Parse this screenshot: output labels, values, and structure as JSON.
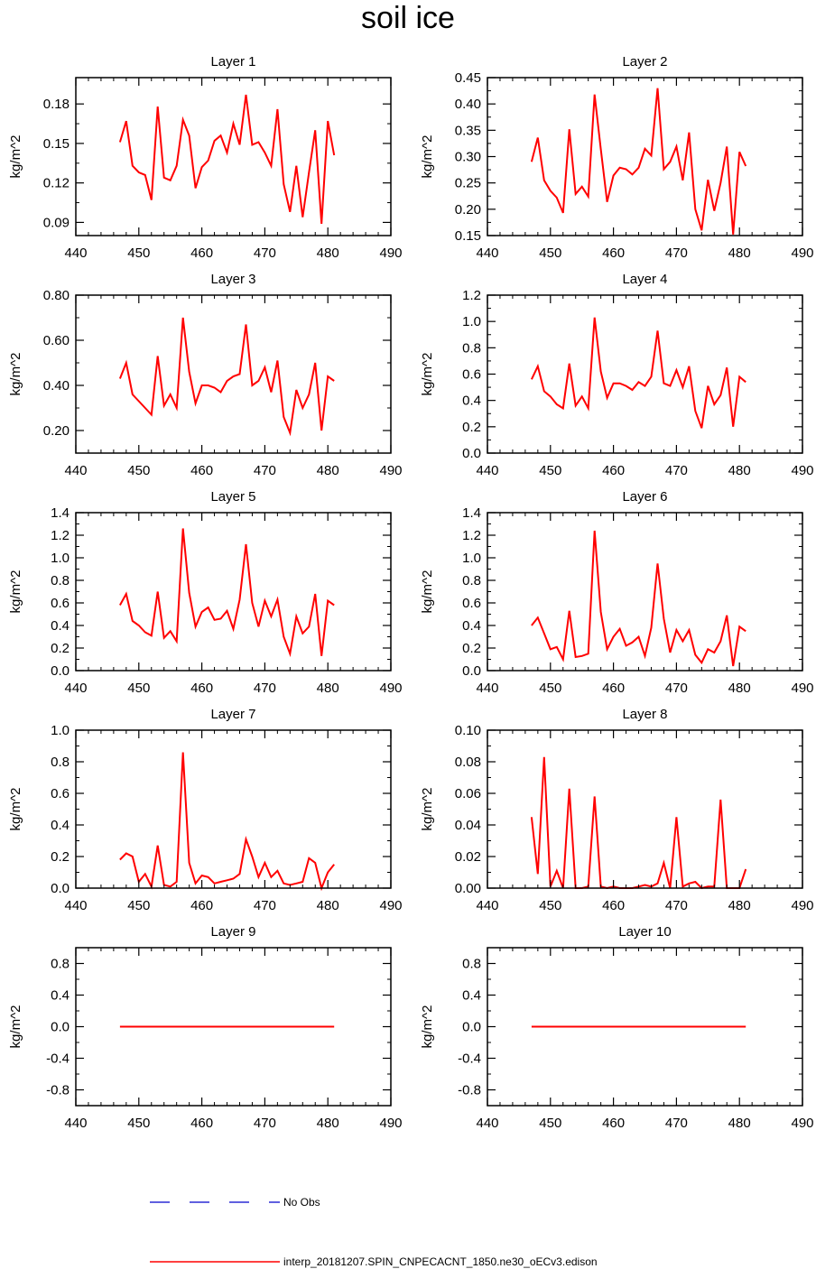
{
  "title": "soil ice",
  "chart_data": [
    {
      "type": "line",
      "title": "Layer 1",
      "ylabel": "kg/m^2",
      "xlim": [
        440,
        490
      ],
      "xticks": [
        440,
        450,
        460,
        470,
        480,
        490
      ],
      "ylim": [
        0.08,
        0.2
      ],
      "yticks": [
        0.09,
        0.12,
        0.15,
        0.18
      ],
      "ytick_labels": [
        "0.09",
        "0.12",
        "0.15",
        "0.18"
      ],
      "x": [
        447,
        448,
        449,
        450,
        451,
        452,
        453,
        454,
        455,
        456,
        457,
        458,
        459,
        460,
        461,
        462,
        463,
        464,
        465,
        466,
        467,
        468,
        469,
        470,
        471,
        472,
        473,
        474,
        475,
        476,
        477,
        478,
        479,
        480,
        481
      ],
      "series": [
        {
          "name": "interp_20181207.SPIN_CNPECACNT_1850.ne30_oECv3.edison",
          "values": [
            0.151,
            0.167,
            0.133,
            0.128,
            0.126,
            0.107,
            0.178,
            0.124,
            0.122,
            0.133,
            0.168,
            0.156,
            0.116,
            0.132,
            0.137,
            0.152,
            0.156,
            0.143,
            0.165,
            0.149,
            0.187,
            0.149,
            0.151,
            0.143,
            0.133,
            0.176,
            0.119,
            0.098,
            0.133,
            0.094,
            0.128,
            0.16,
            0.089,
            0.167,
            0.141
          ]
        }
      ]
    },
    {
      "type": "line",
      "title": "Layer 2",
      "ylabel": "kg/m^2",
      "xlim": [
        440,
        490
      ],
      "xticks": [
        440,
        450,
        460,
        470,
        480,
        490
      ],
      "ylim": [
        0.15,
        0.45
      ],
      "yticks": [
        0.15,
        0.2,
        0.25,
        0.3,
        0.35,
        0.4,
        0.45
      ],
      "ytick_labels": [
        "0.15",
        "0.20",
        "0.25",
        "0.30",
        "0.35",
        "0.40",
        "0.45"
      ],
      "x": [
        447,
        448,
        449,
        450,
        451,
        452,
        453,
        454,
        455,
        456,
        457,
        458,
        459,
        460,
        461,
        462,
        463,
        464,
        465,
        466,
        467,
        468,
        469,
        470,
        471,
        472,
        473,
        474,
        475,
        476,
        477,
        478,
        479,
        480,
        481
      ],
      "series": [
        {
          "name": "interp_20181207.SPIN_CNPECACNT_1850.ne30_oECv3.edison",
          "values": [
            0.29,
            0.336,
            0.255,
            0.235,
            0.222,
            0.193,
            0.352,
            0.229,
            0.243,
            0.224,
            0.418,
            0.314,
            0.214,
            0.264,
            0.279,
            0.276,
            0.266,
            0.279,
            0.315,
            0.302,
            0.43,
            0.276,
            0.29,
            0.319,
            0.255,
            0.346,
            0.2,
            0.16,
            0.256,
            0.197,
            0.25,
            0.319,
            0.152,
            0.309,
            0.282
          ]
        }
      ]
    },
    {
      "type": "line",
      "title": "Layer 3",
      "ylabel": "kg/m^2",
      "xlim": [
        440,
        490
      ],
      "xticks": [
        440,
        450,
        460,
        470,
        480,
        490
      ],
      "ylim": [
        0.1,
        0.8
      ],
      "yticks": [
        0.2,
        0.4,
        0.6,
        0.8
      ],
      "ytick_labels": [
        "0.20",
        "0.40",
        "0.60",
        "0.80"
      ],
      "x": [
        447,
        448,
        449,
        450,
        451,
        452,
        453,
        454,
        455,
        456,
        457,
        458,
        459,
        460,
        461,
        462,
        463,
        464,
        465,
        466,
        467,
        468,
        469,
        470,
        471,
        472,
        473,
        474,
        475,
        476,
        477,
        478,
        479,
        480,
        481
      ],
      "series": [
        {
          "name": "interp_20181207.SPIN_CNPECACNT_1850.ne30_oECv3.edison",
          "values": [
            0.43,
            0.5,
            0.36,
            0.33,
            0.3,
            0.27,
            0.53,
            0.31,
            0.36,
            0.3,
            0.7,
            0.46,
            0.32,
            0.4,
            0.4,
            0.39,
            0.37,
            0.42,
            0.44,
            0.45,
            0.67,
            0.4,
            0.42,
            0.48,
            0.37,
            0.51,
            0.26,
            0.19,
            0.38,
            0.3,
            0.36,
            0.5,
            0.2,
            0.44,
            0.42
          ]
        }
      ]
    },
    {
      "type": "line",
      "title": "Layer 4",
      "ylabel": "kg/m^2",
      "xlim": [
        440,
        490
      ],
      "xticks": [
        440,
        450,
        460,
        470,
        480,
        490
      ],
      "ylim": [
        0,
        1.2
      ],
      "yticks": [
        0,
        0.2,
        0.4,
        0.6,
        0.8,
        1.0,
        1.2
      ],
      "ytick_labels": [
        "0.0",
        "0.2",
        "0.4",
        "0.6",
        "0.8",
        "1.0",
        "1.2"
      ],
      "x": [
        447,
        448,
        449,
        450,
        451,
        452,
        453,
        454,
        455,
        456,
        457,
        458,
        459,
        460,
        461,
        462,
        463,
        464,
        465,
        466,
        467,
        468,
        469,
        470,
        471,
        472,
        473,
        474,
        475,
        476,
        477,
        478,
        479,
        480,
        481
      ],
      "series": [
        {
          "name": "interp_20181207.SPIN_CNPECACNT_1850.ne30_oECv3.edison",
          "values": [
            0.56,
            0.66,
            0.47,
            0.43,
            0.37,
            0.34,
            0.68,
            0.36,
            0.43,
            0.34,
            1.03,
            0.62,
            0.42,
            0.53,
            0.53,
            0.51,
            0.48,
            0.54,
            0.51,
            0.58,
            0.93,
            0.53,
            0.51,
            0.63,
            0.5,
            0.66,
            0.32,
            0.19,
            0.51,
            0.37,
            0.44,
            0.65,
            0.2,
            0.58,
            0.54
          ]
        }
      ]
    },
    {
      "type": "line",
      "title": "Layer 5",
      "ylabel": "kg/m^2",
      "xlim": [
        440,
        490
      ],
      "xticks": [
        440,
        450,
        460,
        470,
        480,
        490
      ],
      "ylim": [
        0,
        1.4
      ],
      "yticks": [
        0,
        0.2,
        0.4,
        0.6,
        0.8,
        1.0,
        1.2,
        1.4
      ],
      "ytick_labels": [
        "0.0",
        "0.2",
        "0.4",
        "0.6",
        "0.8",
        "1.0",
        "1.2",
        "1.4"
      ],
      "x": [
        447,
        448,
        449,
        450,
        451,
        452,
        453,
        454,
        455,
        456,
        457,
        458,
        459,
        460,
        461,
        462,
        463,
        464,
        465,
        466,
        467,
        468,
        469,
        470,
        471,
        472,
        473,
        474,
        475,
        476,
        477,
        478,
        479,
        480,
        481
      ],
      "series": [
        {
          "name": "interp_20181207.SPIN_CNPECACNT_1850.ne30_oECv3.edison",
          "values": [
            0.58,
            0.68,
            0.44,
            0.4,
            0.34,
            0.31,
            0.7,
            0.29,
            0.35,
            0.26,
            1.26,
            0.69,
            0.39,
            0.52,
            0.56,
            0.45,
            0.46,
            0.53,
            0.37,
            0.63,
            1.12,
            0.6,
            0.39,
            0.62,
            0.48,
            0.63,
            0.3,
            0.15,
            0.48,
            0.33,
            0.39,
            0.68,
            0.13,
            0.62,
            0.58
          ]
        }
      ]
    },
    {
      "type": "line",
      "title": "Layer 6",
      "ylabel": "kg/m^2",
      "xlim": [
        440,
        490
      ],
      "xticks": [
        440,
        450,
        460,
        470,
        480,
        490
      ],
      "ylim": [
        0,
        1.4
      ],
      "yticks": [
        0,
        0.2,
        0.4,
        0.6,
        0.8,
        1.0,
        1.2,
        1.4
      ],
      "ytick_labels": [
        "0.0",
        "0.2",
        "0.4",
        "0.6",
        "0.8",
        "1.0",
        "1.2",
        "1.4"
      ],
      "x": [
        447,
        448,
        449,
        450,
        451,
        452,
        453,
        454,
        455,
        456,
        457,
        458,
        459,
        460,
        461,
        462,
        463,
        464,
        465,
        466,
        467,
        468,
        469,
        470,
        471,
        472,
        473,
        474,
        475,
        476,
        477,
        478,
        479,
        480,
        481
      ],
      "series": [
        {
          "name": "interp_20181207.SPIN_CNPECACNT_1850.ne30_oECv3.edison",
          "values": [
            0.4,
            0.47,
            0.33,
            0.19,
            0.21,
            0.1,
            0.53,
            0.12,
            0.13,
            0.15,
            1.24,
            0.52,
            0.19,
            0.3,
            0.37,
            0.22,
            0.25,
            0.3,
            0.13,
            0.38,
            0.95,
            0.46,
            0.16,
            0.36,
            0.26,
            0.36,
            0.14,
            0.07,
            0.19,
            0.16,
            0.26,
            0.49,
            0.04,
            0.39,
            0.35
          ]
        }
      ]
    },
    {
      "type": "line",
      "title": "Layer 7",
      "ylabel": "kg/m^2",
      "xlim": [
        440,
        490
      ],
      "xticks": [
        440,
        450,
        460,
        470,
        480,
        490
      ],
      "ylim": [
        0,
        1.0
      ],
      "yticks": [
        0,
        0.2,
        0.4,
        0.6,
        0.8,
        1.0
      ],
      "ytick_labels": [
        "0.0",
        "0.2",
        "0.4",
        "0.6",
        "0.8",
        "1.0"
      ],
      "x": [
        447,
        448,
        449,
        450,
        451,
        452,
        453,
        454,
        455,
        456,
        457,
        458,
        459,
        460,
        461,
        462,
        463,
        464,
        465,
        466,
        467,
        468,
        469,
        470,
        471,
        472,
        473,
        474,
        475,
        476,
        477,
        478,
        479,
        480,
        481
      ],
      "series": [
        {
          "name": "interp_20181207.SPIN_CNPECACNT_1850.ne30_oECv3.edison",
          "values": [
            0.18,
            0.22,
            0.2,
            0.04,
            0.09,
            0.01,
            0.27,
            0.02,
            0.01,
            0.04,
            0.86,
            0.16,
            0.03,
            0.08,
            0.07,
            0.03,
            0.04,
            0.05,
            0.06,
            0.09,
            0.31,
            0.2,
            0.07,
            0.16,
            0.07,
            0.11,
            0.03,
            0.02,
            0.03,
            0.04,
            0.19,
            0.16,
            0.0,
            0.1,
            0.15
          ]
        }
      ]
    },
    {
      "type": "line",
      "title": "Layer 8",
      "ylabel": "kg/m^2",
      "xlim": [
        440,
        490
      ],
      "xticks": [
        440,
        450,
        460,
        470,
        480,
        490
      ],
      "ylim": [
        0,
        0.1
      ],
      "yticks": [
        0,
        0.02,
        0.04,
        0.06,
        0.08,
        0.1
      ],
      "ytick_labels": [
        "0.00",
        "0.02",
        "0.04",
        "0.06",
        "0.08",
        "0.10"
      ],
      "x": [
        447,
        448,
        449,
        450,
        451,
        452,
        453,
        454,
        455,
        456,
        457,
        458,
        459,
        460,
        461,
        462,
        463,
        464,
        465,
        466,
        467,
        468,
        469,
        470,
        471,
        472,
        473,
        474,
        475,
        476,
        477,
        478,
        479,
        480,
        481
      ],
      "series": [
        {
          "name": "interp_20181207.SPIN_CNPECACNT_1850.ne30_oECv3.edison",
          "values": [
            0.045,
            0.009,
            0.083,
            0.001,
            0.011,
            0.0,
            0.063,
            0.0,
            0.0,
            0.001,
            0.058,
            0.001,
            0.0,
            0.001,
            0.0,
            0.0,
            0.0,
            0.001,
            0.002,
            0.001,
            0.003,
            0.016,
            0.0,
            0.045,
            0.001,
            0.003,
            0.004,
            0.0,
            0.001,
            0.001,
            0.056,
            0.0,
            0.0,
            0.0,
            0.012
          ]
        }
      ]
    },
    {
      "type": "line",
      "title": "Layer 9",
      "ylabel": "kg/m^2",
      "xlim": [
        440,
        490
      ],
      "xticks": [
        440,
        450,
        460,
        470,
        480,
        490
      ],
      "ylim": [
        -1.0,
        1.0
      ],
      "yticks": [
        -0.8,
        -0.4,
        0,
        0.4,
        0.8
      ],
      "ytick_labels": [
        "-0.8",
        "-0.4",
        "0.0",
        "0.4",
        "0.8"
      ],
      "x": [
        447,
        481
      ],
      "series": [
        {
          "name": "interp_20181207.SPIN_CNPECACNT_1850.ne30_oECv3.edison",
          "values": [
            0,
            0
          ]
        }
      ]
    },
    {
      "type": "line",
      "title": "Layer 10",
      "ylabel": "kg/m^2",
      "xlim": [
        440,
        490
      ],
      "xticks": [
        440,
        450,
        460,
        470,
        480,
        490
      ],
      "ylim": [
        -1.0,
        1.0
      ],
      "yticks": [
        -0.8,
        -0.4,
        0,
        0.4,
        0.8
      ],
      "ytick_labels": [
        "-0.8",
        "-0.4",
        "0.0",
        "0.4",
        "0.8"
      ],
      "x": [
        447,
        481
      ],
      "series": [
        {
          "name": "interp_20181207.SPIN_CNPECACNT_1850.ne30_oECv3.edison",
          "values": [
            0,
            0
          ]
        }
      ]
    }
  ],
  "legend": [
    {
      "label": "No Obs",
      "color": "#0000cc",
      "style": "dashed"
    },
    {
      "label": "interp_20181207.SPIN_CNPECACNT_1850.ne30_oECv3.edison",
      "color": "#ff0000",
      "style": "solid"
    }
  ]
}
